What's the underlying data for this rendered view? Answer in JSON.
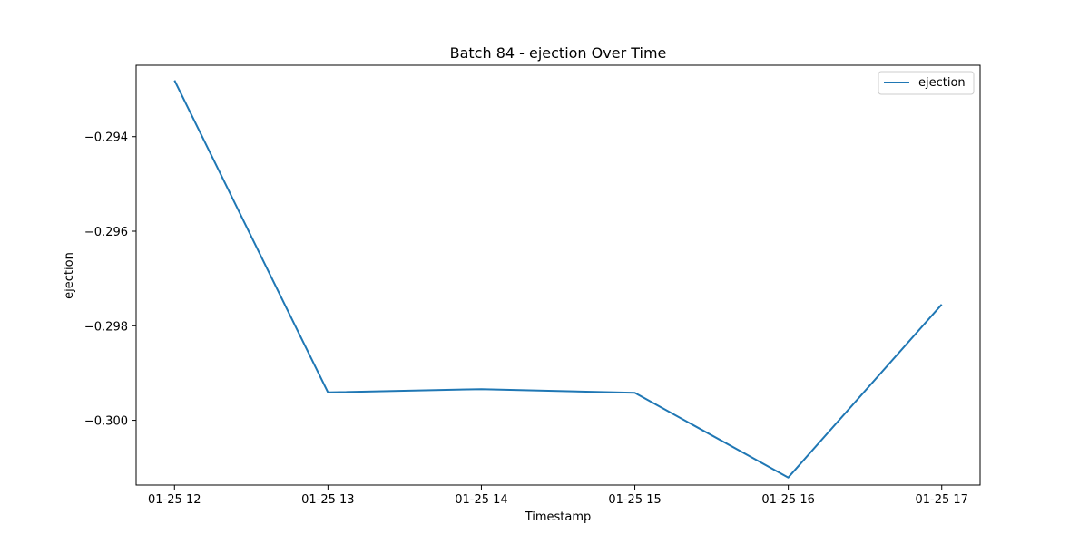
{
  "chart_data": {
    "type": "line",
    "title": "Batch 84 - ejection Over Time",
    "xlabel": "Timestamp",
    "ylabel": "ejection",
    "x": [
      "01-25 12",
      "01-25 13",
      "01-25 14",
      "01-25 15",
      "01-25 16",
      "01-25 17"
    ],
    "series": [
      {
        "name": "ejection",
        "values": [
          -0.29281,
          -0.29941,
          -0.29934,
          -0.29942,
          -0.30121,
          -0.29755
        ]
      }
    ],
    "yticks": [
      "−0.300",
      "−0.298",
      "−0.296",
      "−0.294"
    ],
    "ylim": [
      -0.30137,
      -0.29249
    ],
    "xlim": [
      -0.25,
      5.25
    ],
    "grid": false,
    "legend": "top-right",
    "colors": {
      "line": "#1f77b4",
      "axis": "#000000"
    }
  }
}
